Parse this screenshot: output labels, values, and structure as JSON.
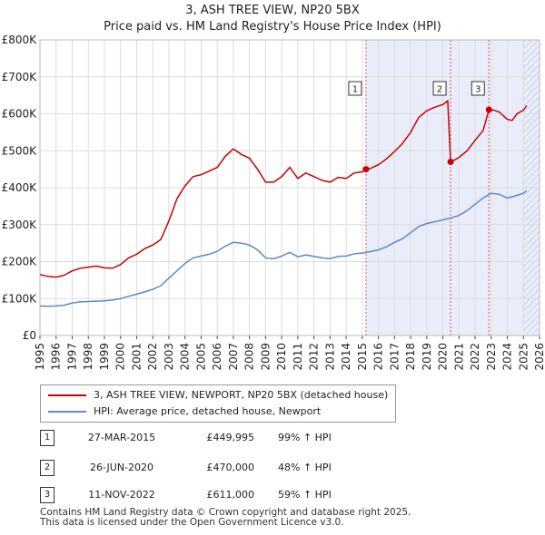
{
  "title": "3, ASH TREE VIEW, NP20 5BX",
  "subtitle": "Price paid vs. HM Land Registry's House Price Index (HPI)",
  "colors": {
    "property": "#cc0000",
    "hpi": "#5b8ac8",
    "shade": "#e8edf9",
    "grid": "#dddddd"
  },
  "chart_data": {
    "type": "line",
    "title": "3, ASH TREE VIEW, NP20 5BX",
    "subtitle": "Price paid vs. HM Land Registry's House Price Index (HPI)",
    "xlabel": "",
    "ylabel": "",
    "xlim": [
      1995,
      2026
    ],
    "ylim": [
      0,
      800000
    ],
    "x_ticks": [
      "1995",
      "1996",
      "1997",
      "1998",
      "1999",
      "2000",
      "2001",
      "2002",
      "2003",
      "2004",
      "2005",
      "2006",
      "2007",
      "2008",
      "2009",
      "2010",
      "2011",
      "2012",
      "2013",
      "2014",
      "2015",
      "2016",
      "2017",
      "2018",
      "2019",
      "2020",
      "2021",
      "2022",
      "2023",
      "2024",
      "2025",
      "2026"
    ],
    "y_ticks": [
      {
        "value": 0,
        "label": "£0"
      },
      {
        "value": 100000,
        "label": "£100K"
      },
      {
        "value": 200000,
        "label": "£200K"
      },
      {
        "value": 300000,
        "label": "£300K"
      },
      {
        "value": 400000,
        "label": "£400K"
      },
      {
        "value": 500000,
        "label": "£500K"
      },
      {
        "value": 600000,
        "label": "£600K"
      },
      {
        "value": 700000,
        "label": "£700K"
      },
      {
        "value": 800000,
        "label": "£800K"
      }
    ],
    "shaded_regions": [
      {
        "from": 2015.23,
        "to": 2026
      },
      {
        "from": 2025.0,
        "to": 2026,
        "hatched": true
      }
    ],
    "series": [
      {
        "name": "3, ASH TREE VIEW, NEWPORT, NP20 5BX (detached house)",
        "color": "#cc0000",
        "points": [
          [
            1995.0,
            165000
          ],
          [
            1995.5,
            160000
          ],
          [
            1996.0,
            158000
          ],
          [
            1996.5,
            163000
          ],
          [
            1997.0,
            175000
          ],
          [
            1997.5,
            182000
          ],
          [
            1998.0,
            185000
          ],
          [
            1998.5,
            188000
          ],
          [
            1999.0,
            183000
          ],
          [
            1999.5,
            182000
          ],
          [
            2000.0,
            192000
          ],
          [
            2000.5,
            210000
          ],
          [
            2001.0,
            220000
          ],
          [
            2001.5,
            235000
          ],
          [
            2002.0,
            245000
          ],
          [
            2002.5,
            260000
          ],
          [
            2003.0,
            310000
          ],
          [
            2003.5,
            370000
          ],
          [
            2004.0,
            405000
          ],
          [
            2004.5,
            430000
          ],
          [
            2005.0,
            435000
          ],
          [
            2005.5,
            445000
          ],
          [
            2006.0,
            455000
          ],
          [
            2006.5,
            485000
          ],
          [
            2007.0,
            505000
          ],
          [
            2007.5,
            490000
          ],
          [
            2008.0,
            480000
          ],
          [
            2008.5,
            450000
          ],
          [
            2009.0,
            415000
          ],
          [
            2009.5,
            415000
          ],
          [
            2010.0,
            430000
          ],
          [
            2010.5,
            455000
          ],
          [
            2011.0,
            425000
          ],
          [
            2011.5,
            440000
          ],
          [
            2012.0,
            430000
          ],
          [
            2012.5,
            420000
          ],
          [
            2013.0,
            415000
          ],
          [
            2013.5,
            428000
          ],
          [
            2014.0,
            425000
          ],
          [
            2014.5,
            440000
          ],
          [
            2015.0,
            443000
          ],
          [
            2015.23,
            449995
          ],
          [
            2015.5,
            452000
          ],
          [
            2016.0,
            462000
          ],
          [
            2016.5,
            478000
          ],
          [
            2017.0,
            498000
          ],
          [
            2017.5,
            520000
          ],
          [
            2018.0,
            550000
          ],
          [
            2018.5,
            590000
          ],
          [
            2019.0,
            608000
          ],
          [
            2019.5,
            618000
          ],
          [
            2020.0,
            625000
          ],
          [
            2020.3,
            635000
          ],
          [
            2020.48,
            470000
          ],
          [
            2020.6,
            472000
          ],
          [
            2021.0,
            482000
          ],
          [
            2021.5,
            500000
          ],
          [
            2022.0,
            528000
          ],
          [
            2022.5,
            555000
          ],
          [
            2022.86,
            611000
          ],
          [
            2023.0,
            612000
          ],
          [
            2023.5,
            605000
          ],
          [
            2024.0,
            585000
          ],
          [
            2024.3,
            582000
          ],
          [
            2024.6,
            600000
          ],
          [
            2025.0,
            610000
          ],
          [
            2025.2,
            622000
          ]
        ]
      },
      {
        "name": "HPI: Average price, detached house, Newport",
        "color": "#5b8ac8",
        "points": [
          [
            1995.0,
            80000
          ],
          [
            1995.5,
            79000
          ],
          [
            1996.0,
            80000
          ],
          [
            1996.5,
            82000
          ],
          [
            1997.0,
            88000
          ],
          [
            1997.5,
            91000
          ],
          [
            1998.0,
            92000
          ],
          [
            1998.5,
            93000
          ],
          [
            1999.0,
            94000
          ],
          [
            1999.5,
            96000
          ],
          [
            2000.0,
            100000
          ],
          [
            2000.5,
            106000
          ],
          [
            2001.0,
            112000
          ],
          [
            2001.5,
            118000
          ],
          [
            2002.0,
            125000
          ],
          [
            2002.5,
            135000
          ],
          [
            2003.0,
            155000
          ],
          [
            2003.5,
            175000
          ],
          [
            2004.0,
            195000
          ],
          [
            2004.5,
            210000
          ],
          [
            2005.0,
            215000
          ],
          [
            2005.5,
            220000
          ],
          [
            2006.0,
            228000
          ],
          [
            2006.5,
            242000
          ],
          [
            2007.0,
            252000
          ],
          [
            2007.5,
            250000
          ],
          [
            2008.0,
            245000
          ],
          [
            2008.5,
            232000
          ],
          [
            2009.0,
            210000
          ],
          [
            2009.5,
            208000
          ],
          [
            2010.0,
            215000
          ],
          [
            2010.5,
            225000
          ],
          [
            2011.0,
            213000
          ],
          [
            2011.5,
            218000
          ],
          [
            2012.0,
            214000
          ],
          [
            2012.5,
            210000
          ],
          [
            2013.0,
            208000
          ],
          [
            2013.5,
            214000
          ],
          [
            2014.0,
            215000
          ],
          [
            2014.5,
            221000
          ],
          [
            2015.0,
            223000
          ],
          [
            2015.5,
            227000
          ],
          [
            2016.0,
            232000
          ],
          [
            2016.5,
            240000
          ],
          [
            2017.0,
            252000
          ],
          [
            2017.5,
            262000
          ],
          [
            2018.0,
            278000
          ],
          [
            2018.5,
            295000
          ],
          [
            2019.0,
            303000
          ],
          [
            2019.5,
            308000
          ],
          [
            2020.0,
            313000
          ],
          [
            2020.5,
            318000
          ],
          [
            2021.0,
            325000
          ],
          [
            2021.5,
            338000
          ],
          [
            2022.0,
            355000
          ],
          [
            2022.5,
            372000
          ],
          [
            2023.0,
            385000
          ],
          [
            2023.5,
            382000
          ],
          [
            2024.0,
            372000
          ],
          [
            2024.5,
            378000
          ],
          [
            2025.0,
            385000
          ],
          [
            2025.2,
            392000
          ]
        ]
      }
    ],
    "sales": [
      {
        "label": "1",
        "date": "27-MAR-2015",
        "x": 2015.23,
        "price": 449995,
        "price_label": "£449,995",
        "hpi_change": "99% ↑ HPI"
      },
      {
        "label": "2",
        "date": "26-JUN-2020",
        "x": 2020.48,
        "price": 470000,
        "price_label": "£470,000",
        "hpi_change": "48% ↑ HPI"
      },
      {
        "label": "3",
        "date": "11-NOV-2022",
        "x": 2022.86,
        "price": 611000,
        "price_label": "£611,000",
        "hpi_change": "59% ↑ HPI"
      }
    ],
    "legend": [
      "3, ASH TREE VIEW, NEWPORT, NP20 5BX (detached house)",
      "HPI: Average price, detached house, Newport"
    ]
  },
  "footer": {
    "line1": "Contains HM Land Registry data © Crown copyright and database right 2025.",
    "line2": "This data is licensed under the Open Government Licence v3.0."
  }
}
